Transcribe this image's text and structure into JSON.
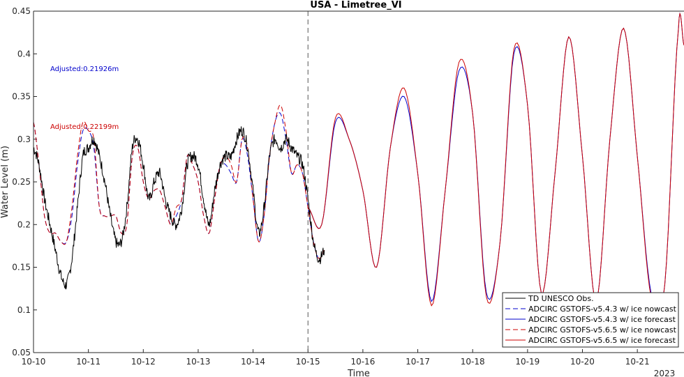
{
  "chart_data": {
    "type": "line",
    "title": "USA - Limetree_VI",
    "xlabel": "Time",
    "ylabel": "Water Level (m)",
    "year_label": "2023",
    "x_ticks": [
      "10-10",
      "10-11",
      "10-12",
      "10-13",
      "10-14",
      "10-15",
      "10-16",
      "10-17",
      "10-18",
      "10-19",
      "10-20",
      "10-21"
    ],
    "xlim_days": [
      0,
      11.85
    ],
    "ylim": [
      0.05,
      0.45
    ],
    "y_ticks": [
      "0.05",
      "0.1",
      "0.15",
      "0.2",
      "0.25",
      "0.3",
      "0.35",
      "0.4",
      "0.45"
    ],
    "grid": false,
    "forecast_start_label": "10-15",
    "annotations": [
      {
        "text": "Adjusted:0.21926m",
        "color": "#0000cc"
      },
      {
        "text": "Adjusted:0.22199m",
        "color": "#cc0000"
      }
    ],
    "legend_position": "bottom-right",
    "series": [
      {
        "name": "TD UNESCO Obs.",
        "color": "#000000",
        "style": "solid",
        "x_days": [
          0.0,
          0.1,
          0.2,
          0.3,
          0.4,
          0.5,
          0.6,
          0.7,
          0.8,
          0.9,
          1.0,
          1.1,
          1.2,
          1.3,
          1.4,
          1.5,
          1.6,
          1.7,
          1.8,
          1.9,
          2.0,
          2.1,
          2.2,
          2.3,
          2.4,
          2.5,
          2.6,
          2.7,
          2.8,
          2.9,
          3.0,
          3.1,
          3.2,
          3.3,
          3.4,
          3.5,
          3.6,
          3.7,
          3.8,
          3.9,
          4.0,
          4.1,
          4.2,
          4.3,
          4.4,
          4.5,
          4.6,
          4.7,
          4.8,
          4.9,
          5.0,
          5.1,
          5.2,
          5.3
        ],
        "values": [
          0.29,
          0.27,
          0.23,
          0.2,
          0.17,
          0.14,
          0.13,
          0.16,
          0.22,
          0.28,
          0.29,
          0.3,
          0.28,
          0.25,
          0.21,
          0.18,
          0.18,
          0.22,
          0.29,
          0.3,
          0.27,
          0.23,
          0.25,
          0.26,
          0.23,
          0.21,
          0.2,
          0.22,
          0.27,
          0.28,
          0.27,
          0.23,
          0.2,
          0.24,
          0.27,
          0.28,
          0.28,
          0.3,
          0.31,
          0.29,
          0.24,
          0.19,
          0.22,
          0.28,
          0.3,
          0.29,
          0.3,
          0.29,
          0.28,
          0.27,
          0.23,
          0.18,
          0.16,
          0.17
        ]
      },
      {
        "name": "ADCIRC GSTOFS-v5.4.3 w/ ice nowcast",
        "color": "#0000cc",
        "style": "dashed",
        "x_days": [
          0.0,
          0.1,
          0.2,
          0.3,
          0.4,
          0.5,
          0.6,
          0.7,
          0.8,
          0.9,
          1.0,
          1.1,
          1.2,
          1.3,
          1.4,
          1.5,
          1.6,
          1.7,
          1.8,
          1.9,
          2.0,
          2.1,
          2.2,
          2.3,
          2.4,
          2.5,
          2.6,
          2.7,
          2.8,
          2.9,
          3.0,
          3.1,
          3.2,
          3.3,
          3.4,
          3.5,
          3.6,
          3.7,
          3.8,
          3.9,
          4.0,
          4.1,
          4.2,
          4.3,
          4.4,
          4.5,
          4.6,
          4.7,
          4.8,
          4.9,
          5.0,
          5.1,
          5.2,
          5.3
        ],
        "values": [
          0.32,
          0.27,
          0.21,
          0.19,
          0.19,
          0.18,
          0.18,
          0.21,
          0.27,
          0.31,
          0.31,
          0.29,
          0.22,
          0.21,
          0.21,
          0.21,
          0.19,
          0.2,
          0.28,
          0.29,
          0.25,
          0.23,
          0.24,
          0.24,
          0.22,
          0.2,
          0.21,
          0.23,
          0.28,
          0.27,
          0.25,
          0.21,
          0.19,
          0.23,
          0.27,
          0.27,
          0.26,
          0.25,
          0.3,
          0.28,
          0.23,
          0.18,
          0.21,
          0.28,
          0.32,
          0.33,
          0.3,
          0.26,
          0.27,
          0.26,
          0.22,
          0.18,
          0.16,
          0.17
        ]
      },
      {
        "name": "ADCIRC GSTOFS-v5.4.3 w/ ice forecast",
        "color": "#0000cc",
        "style": "solid",
        "x_days": [
          5.0,
          5.25,
          5.5,
          5.75,
          6.0,
          6.25,
          6.5,
          6.75,
          7.0,
          7.25,
          7.5,
          7.75,
          8.0,
          8.25,
          8.5,
          8.75,
          9.0,
          9.25,
          9.5,
          9.75,
          10.0,
          10.25,
          10.5,
          10.75,
          11.0,
          11.25,
          11.5,
          11.75,
          11.85
        ],
        "values": [
          0.22,
          0.2,
          0.32,
          0.3,
          0.24,
          0.15,
          0.29,
          0.35,
          0.26,
          0.11,
          0.24,
          0.38,
          0.33,
          0.12,
          0.18,
          0.4,
          0.34,
          0.12,
          0.26,
          0.42,
          0.28,
          0.11,
          0.3,
          0.43,
          0.28,
          0.12,
          0.13,
          0.43,
          0.41
        ]
      },
      {
        "name": "ADCIRC GSTOFS-v5.6.5 w/ ice nowcast",
        "color": "#cc0000",
        "style": "dashed",
        "x_days": [
          0.0,
          0.1,
          0.2,
          0.3,
          0.4,
          0.5,
          0.6,
          0.7,
          0.8,
          0.9,
          1.0,
          1.1,
          1.2,
          1.3,
          1.4,
          1.5,
          1.6,
          1.7,
          1.8,
          1.9,
          2.0,
          2.1,
          2.2,
          2.3,
          2.4,
          2.5,
          2.6,
          2.7,
          2.8,
          2.9,
          3.0,
          3.1,
          3.2,
          3.3,
          3.4,
          3.5,
          3.6,
          3.7,
          3.8,
          3.9,
          4.0,
          4.1,
          4.2,
          4.3,
          4.4,
          4.5,
          4.6,
          4.7,
          4.8,
          4.9,
          5.0,
          5.1,
          5.2,
          5.3
        ],
        "values": [
          0.32,
          0.27,
          0.21,
          0.19,
          0.19,
          0.18,
          0.18,
          0.22,
          0.28,
          0.32,
          0.31,
          0.3,
          0.22,
          0.21,
          0.21,
          0.21,
          0.19,
          0.2,
          0.28,
          0.29,
          0.25,
          0.23,
          0.24,
          0.24,
          0.22,
          0.2,
          0.22,
          0.23,
          0.28,
          0.27,
          0.25,
          0.21,
          0.19,
          0.23,
          0.27,
          0.28,
          0.27,
          0.25,
          0.3,
          0.29,
          0.23,
          0.18,
          0.21,
          0.28,
          0.32,
          0.34,
          0.31,
          0.26,
          0.27,
          0.26,
          0.22,
          0.18,
          0.16,
          0.17
        ]
      },
      {
        "name": "ADCIRC GSTOFS-v5.6.5 w/ ice forecast",
        "color": "#cc0000",
        "style": "solid",
        "x_days": [
          5.0,
          5.25,
          5.5,
          5.75,
          6.0,
          6.25,
          6.5,
          6.75,
          7.0,
          7.25,
          7.5,
          7.75,
          8.0,
          8.25,
          8.5,
          8.75,
          9.0,
          9.25,
          9.5,
          9.75,
          10.0,
          10.25,
          10.5,
          10.75,
          11.0,
          11.25,
          11.5,
          11.75,
          11.85
        ],
        "values": [
          0.22,
          0.2,
          0.325,
          0.3,
          0.24,
          0.15,
          0.29,
          0.36,
          0.26,
          0.105,
          0.24,
          0.39,
          0.33,
          0.115,
          0.18,
          0.405,
          0.34,
          0.12,
          0.26,
          0.42,
          0.28,
          0.11,
          0.3,
          0.43,
          0.28,
          0.115,
          0.13,
          0.43,
          0.41
        ]
      }
    ]
  }
}
